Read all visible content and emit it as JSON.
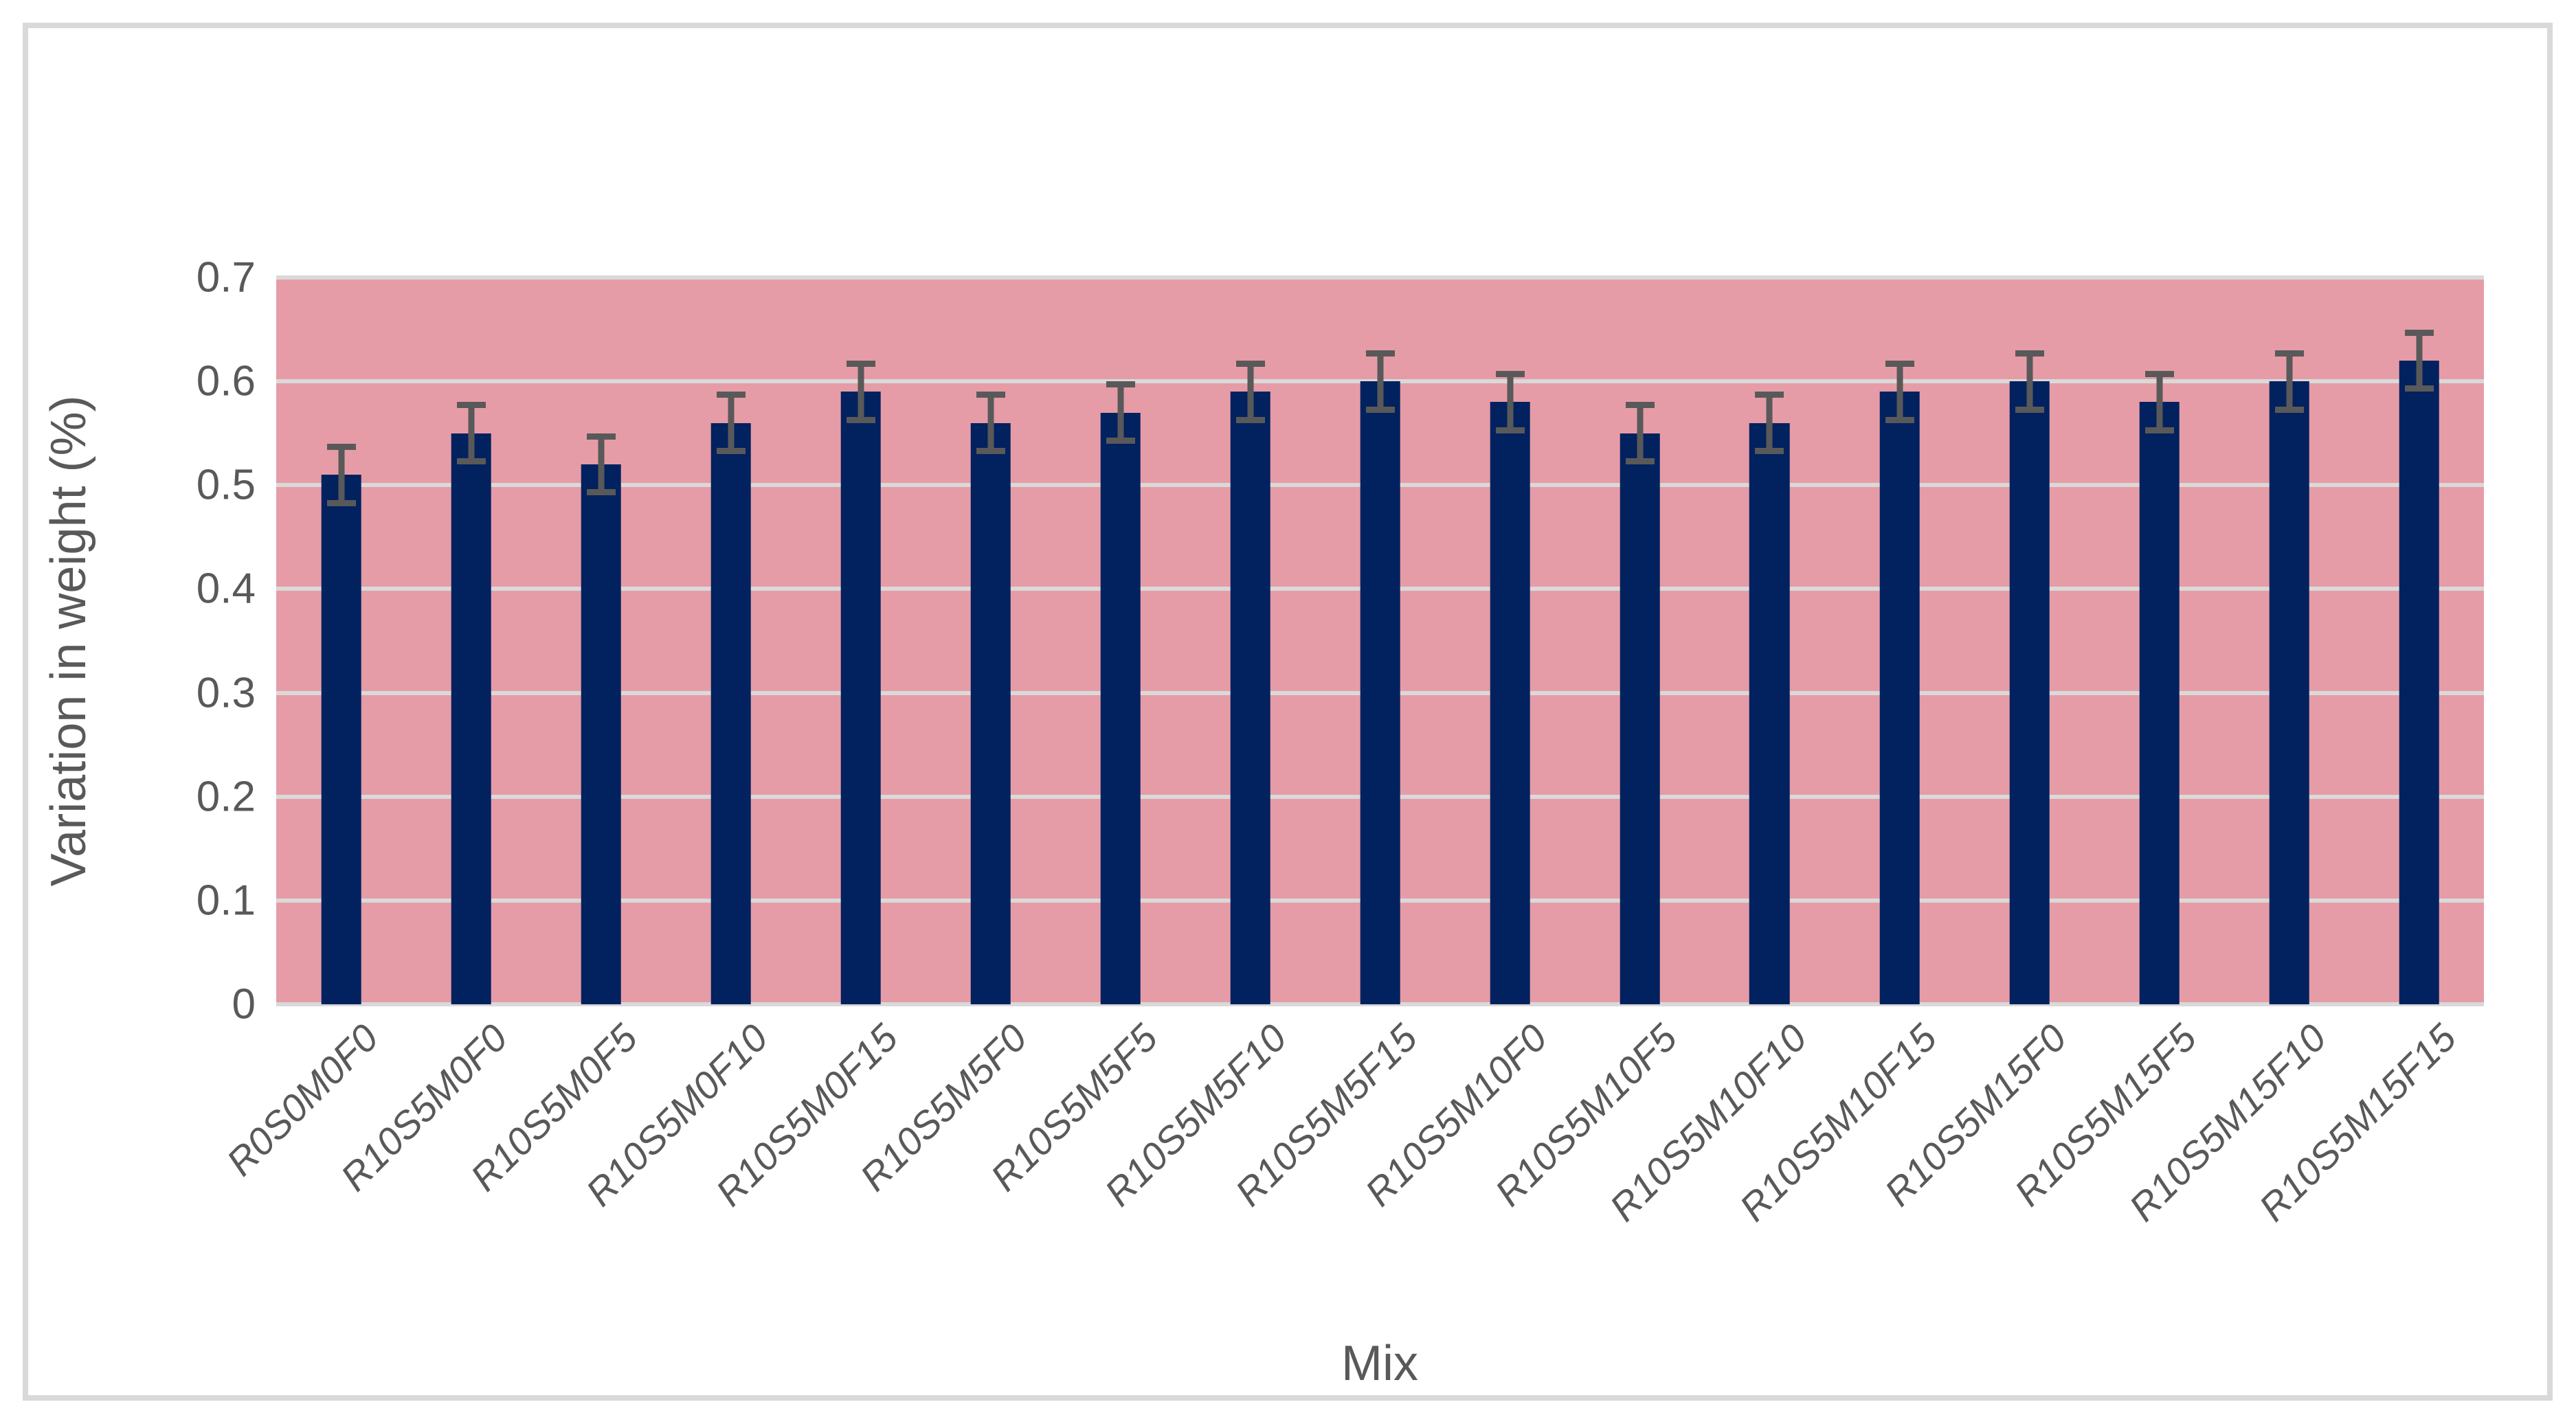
{
  "chart_data": {
    "type": "bar",
    "title": "",
    "xlabel": "Mix",
    "ylabel": "Variation in weight (%)",
    "categories": [
      "R0S0M0F0",
      "R10S5M0F0",
      "R10S5M0F5",
      "R10S5M0F10",
      "R10S5M0F15",
      "R10S5M5F0",
      "R10S5M5F5",
      "R10S5M5F10",
      "R10S5M5F15",
      "R10S5M10F0",
      "R10S5M10F5",
      "R10S5M10F10",
      "R10S5M10F15",
      "R10S5M15F0",
      "R10S5M15F5",
      "R10S5M15F10",
      "R10S5M15F15"
    ],
    "values": [
      0.51,
      0.55,
      0.52,
      0.56,
      0.59,
      0.56,
      0.57,
      0.59,
      0.6,
      0.58,
      0.55,
      0.56,
      0.59,
      0.6,
      0.58,
      0.6,
      0.62
    ],
    "errors": [
      0.03,
      0.03,
      0.03,
      0.03,
      0.03,
      0.03,
      0.03,
      0.03,
      0.03,
      0.03,
      0.03,
      0.03,
      0.03,
      0.03,
      0.03,
      0.03,
      0.03
    ],
    "ylim": [
      0,
      0.7
    ],
    "ytick_labels": [
      "0",
      "0.1",
      "0.2",
      "0.3",
      "0.4",
      "0.5",
      "0.6",
      "0.7"
    ],
    "grid": true,
    "legend_position": "none"
  },
  "colors": {
    "bar": "#02215f",
    "plot_background": "#e69ca6",
    "gridline": "#d9d9d9",
    "error_bar": "#595959",
    "text": "#595959",
    "frame_border": "#d9d9d9",
    "page_background": "#ffffff"
  }
}
